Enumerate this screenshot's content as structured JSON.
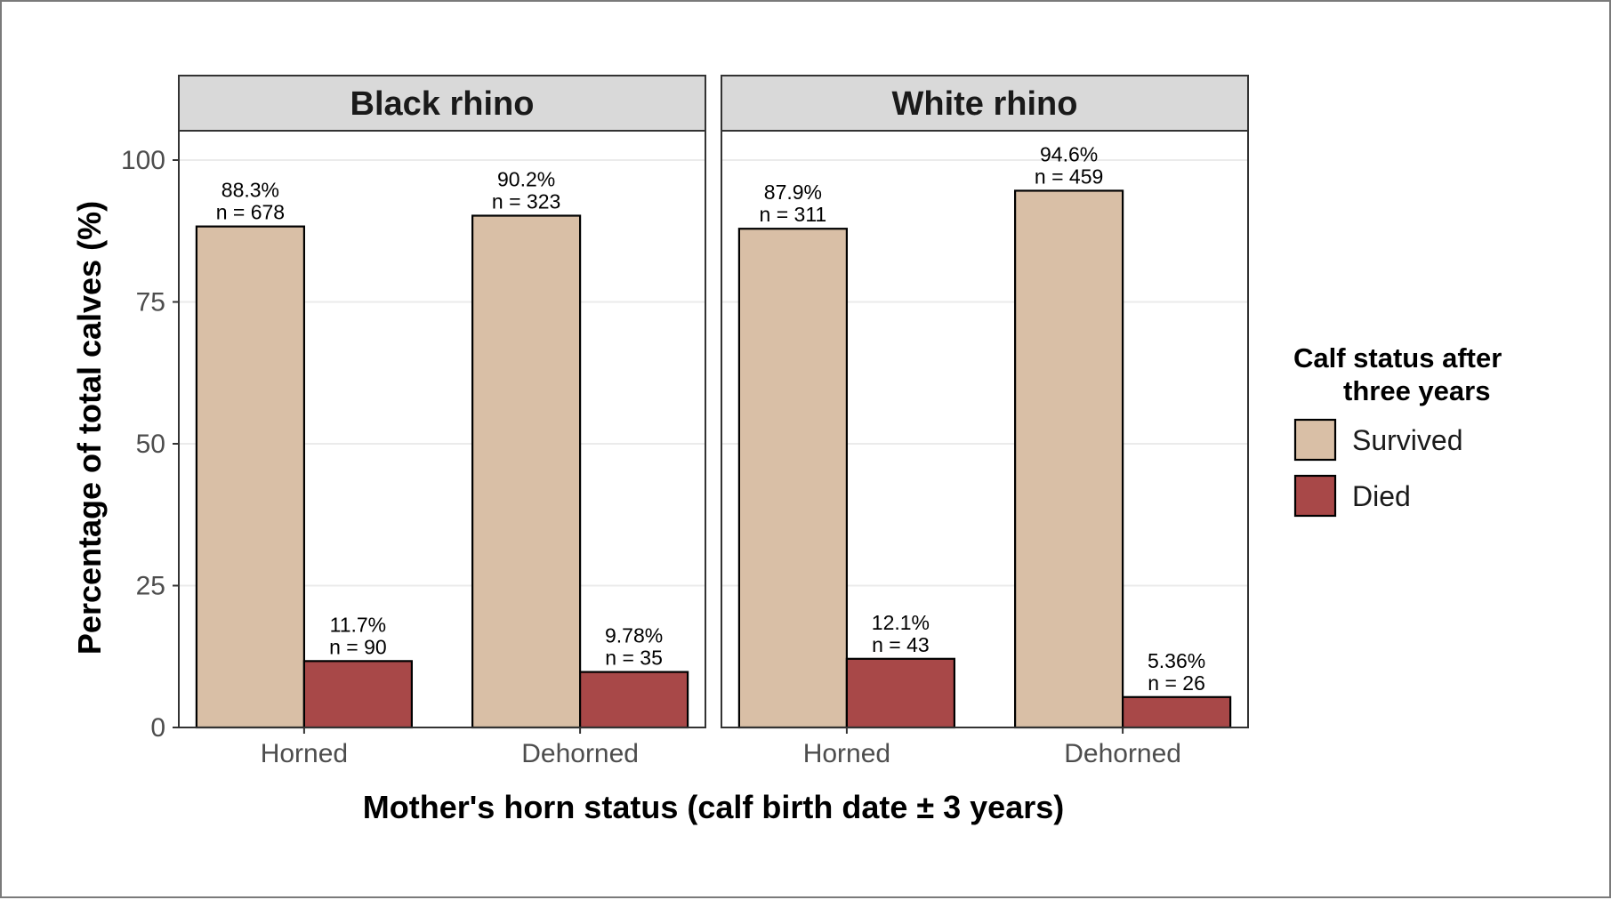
{
  "chart_data": {
    "type": "bar",
    "facets": [
      {
        "name": "Black rhino",
        "categories": [
          "Horned",
          "Dehorned"
        ],
        "series": [
          {
            "name": "Survived",
            "values": [
              88.3,
              90.2
            ],
            "labels": [
              "88.3%",
              "90.2%"
            ],
            "n": [
              "n = 678",
              "n = 323"
            ]
          },
          {
            "name": "Died",
            "values": [
              11.7,
              9.78
            ],
            "labels": [
              "11.7%",
              "9.78%"
            ],
            "n": [
              "n = 90",
              "n = 35"
            ]
          }
        ]
      },
      {
        "name": "White rhino",
        "categories": [
          "Horned",
          "Dehorned"
        ],
        "series": [
          {
            "name": "Survived",
            "values": [
              87.9,
              94.6
            ],
            "labels": [
              "87.9%",
              "94.6%"
            ],
            "n": [
              "n = 311",
              "n = 459"
            ]
          },
          {
            "name": "Died",
            "values": [
              12.1,
              5.36
            ],
            "labels": [
              "12.1%",
              "5.36%"
            ],
            "n": [
              "n = 43",
              "n = 26"
            ]
          }
        ]
      }
    ],
    "xlabel": "Mother's horn status (calf birth date ± 3 years)",
    "ylabel": "Percentage of total calves (%)",
    "ylim": [
      0,
      100
    ],
    "yticks": [
      0,
      25,
      50,
      75,
      100
    ],
    "ytick_labels": [
      "0",
      "25",
      "50",
      "75",
      "100"
    ],
    "grid": true,
    "legend": {
      "title_lines": [
        "Calf status after",
        "three years"
      ],
      "placement": "right",
      "items": [
        "Survived",
        "Died"
      ]
    },
    "colors": {
      "Survived": "#d9bfa6",
      "Died": "#a84848"
    }
  }
}
